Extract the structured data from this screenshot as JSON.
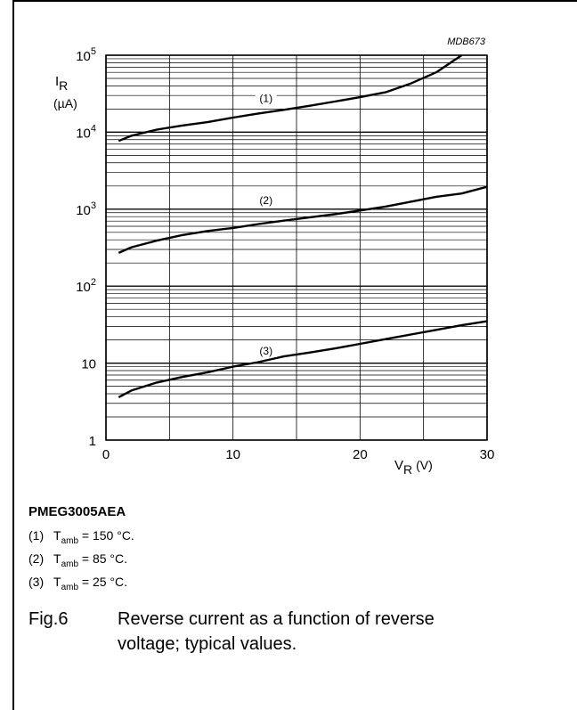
{
  "chart_data": {
    "type": "line",
    "figure_code": "MDB673",
    "ylabel_sym": "I",
    "ylabel_sub": "R",
    "ylabel_unit": "(µA)",
    "xlabel_sym": "V",
    "xlabel_sub": "R",
    "xlabel_unit": "(V)",
    "x_ticks": [
      0,
      10,
      20,
      30
    ],
    "y_tick_labels": [
      {
        "value": 1,
        "base": "1",
        "exp": ""
      },
      {
        "value": 10,
        "base": "10",
        "exp": ""
      },
      {
        "value": 100,
        "base": "10",
        "exp": "2"
      },
      {
        "value": 1000,
        "base": "10",
        "exp": "3"
      },
      {
        "value": 10000,
        "base": "10",
        "exp": "4"
      },
      {
        "value": 100000,
        "base": "10",
        "exp": "5"
      }
    ],
    "xlim": [
      0,
      30
    ],
    "ylim": [
      1,
      100000
    ],
    "y_scale": "log",
    "grid": true,
    "series": [
      {
        "name": "(1)",
        "label_at": {
          "x": 12.6,
          "y": 21000
        },
        "x": [
          1,
          2,
          4,
          6,
          8,
          10,
          12,
          14,
          16,
          18,
          20,
          22,
          24,
          26,
          28
        ],
        "y": [
          7700,
          9000,
          10800,
          12200,
          13500,
          15500,
          17500,
          19500,
          22000,
          25000,
          28500,
          33000,
          43000,
          60000,
          100000
        ]
      },
      {
        "name": "(2)",
        "label_at": {
          "x": 12.6,
          "y": 1000
        },
        "x": [
          1,
          2,
          4,
          6,
          8,
          10,
          12,
          14,
          16,
          18,
          20,
          22,
          24,
          26,
          28,
          30
        ],
        "y": [
          270,
          320,
          390,
          460,
          520,
          570,
          640,
          710,
          780,
          860,
          960,
          1080,
          1250,
          1450,
          1600,
          1950
        ]
      },
      {
        "name": "(3)",
        "label_at": {
          "x": 12.6,
          "y": 11
        },
        "x": [
          1,
          2,
          4,
          6,
          8,
          10,
          12,
          14,
          16,
          18,
          20,
          22,
          24,
          26,
          28,
          30
        ],
        "y": [
          3.6,
          4.4,
          5.6,
          6.6,
          7.6,
          9.0,
          10.3,
          12.2,
          13.7,
          15.5,
          17.8,
          20.5,
          23.5,
          27,
          31,
          35
        ]
      }
    ]
  },
  "legend": {
    "device": "PMEG3005AEA",
    "items": [
      {
        "num": "(1)",
        "sym": "T",
        "sub": "amb",
        "value": " = 150 °C."
      },
      {
        "num": "(2)",
        "sym": "T",
        "sub": "amb",
        "value": " = 85 °C."
      },
      {
        "num": "(3)",
        "sym": "T",
        "sub": "amb",
        "value": " = 25 °C."
      }
    ]
  },
  "caption": {
    "fig": "Fig.6",
    "text": "Reverse current as a function of reverse voltage; typical values."
  }
}
